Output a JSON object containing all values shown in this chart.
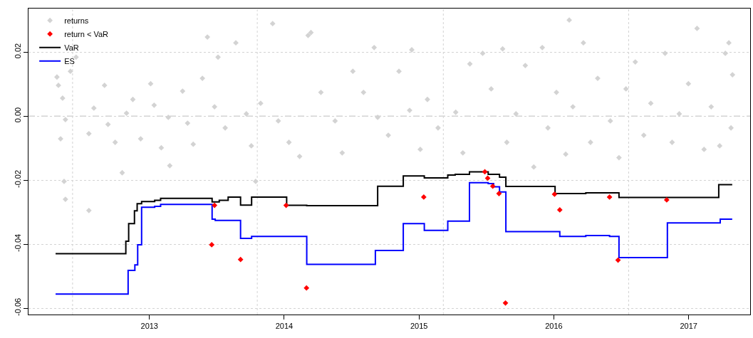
{
  "chart_data": {
    "type": "scatter",
    "xlim": [
      2012.103,
      2017.456
    ],
    "ylim": [
      -0.062,
      0.0336
    ],
    "xticks": [
      2013,
      2014,
      2015,
      2016,
      2017
    ],
    "yticks": [
      {
        "value": -0.06,
        "label": "-0.06"
      },
      {
        "value": -0.04,
        "label": "-0.04"
      },
      {
        "value": -0.02,
        "label": "-0.02"
      },
      {
        "value": 0,
        "label": "0.00"
      },
      {
        "value": 0.02,
        "label": "0.02"
      }
    ],
    "grid": "y",
    "legend": "top left",
    "ref_lines": [
      {
        "axis": "y",
        "value": 0,
        "color": "#bebebe",
        "line_style": "dashed"
      },
      {
        "axis": "x",
        "value": 2012.43,
        "color": "#d3d3d3",
        "line_style": "dotted"
      },
      {
        "axis": "x",
        "value": 2013.8,
        "color": "#d3d3d3",
        "line_style": "dotted"
      },
      {
        "axis": "x",
        "value": 2015.18,
        "color": "#d3d3d3",
        "line_style": "dotted"
      },
      {
        "axis": "x",
        "value": 2016.555,
        "color": "#d3d3d3",
        "line_style": "dotted"
      }
    ],
    "series": [
      {
        "name": "returns",
        "marker": "diamond",
        "color": "#d3d3d3",
        "x": [
          2012.314,
          2012.325,
          2012.356,
          2012.377,
          2012.341,
          2012.367,
          2012.377,
          2012.414,
          2012.456,
          2012.551,
          2012.551,
          2012.588,
          2012.667,
          2012.693,
          2012.746,
          2012.798,
          2012.83,
          2012.877,
          2012.935,
          2013.009,
          2013.035,
          2013.088,
          2013.151,
          2013.14,
          2013.246,
          2013.283,
          2013.325,
          2013.393,
          2013.43,
          2013.483,
          2013.509,
          2013.562,
          2013.641,
          2013.719,
          2013.756,
          2013.788,
          2013.825,
          2013.914,
          2013.956,
          2014.035,
          2014.114,
          2014.177,
          2014.198,
          2014.272,
          2014.377,
          2014.43,
          2014.509,
          2014.588,
          2014.667,
          2014.693,
          2014.772,
          2014.851,
          2014.93,
          2014.946,
          2015.009,
          2015.062,
          2015.141,
          2015.272,
          2015.325,
          2015.377,
          2015.472,
          2015.535,
          2015.62,
          2015.651,
          2015.719,
          2015.788,
          2015.851,
          2015.914,
          2015.956,
          2016.019,
          2016.088,
          2016.114,
          2016.141,
          2016.219,
          2016.272,
          2016.325,
          2016.419,
          2016.483,
          2016.535,
          2016.604,
          2016.667,
          2016.719,
          2016.825,
          2016.877,
          2016.93,
          2016.998,
          2017.062,
          2017.114,
          2017.167,
          2017.23,
          2017.272,
          2017.298,
          2017.314,
          2017.325
        ],
        "values": [
          0.0122,
          0.0096,
          0.0056,
          -0.0011,
          -0.0071,
          -0.0204,
          -0.026,
          0.014,
          0.0184,
          -0.0055,
          -0.0295,
          0.0025,
          0.0096,
          -0.0026,
          -0.0082,
          -0.0177,
          0.0009,
          0.0052,
          -0.0071,
          0.0101,
          0.0034,
          -0.0099,
          -0.0155,
          -0.0004,
          0.0078,
          -0.0022,
          -0.0088,
          0.0118,
          0.0247,
          0.0029,
          0.0184,
          -0.0037,
          0.0229,
          0.0007,
          -0.0093,
          -0.0204,
          0.004,
          0.0289,
          -0.0015,
          -0.0082,
          -0.0126,
          0.0252,
          0.0261,
          0.0074,
          -0.0015,
          -0.0115,
          0.014,
          0.0074,
          0.0214,
          -0.0004,
          -0.006,
          0.014,
          0.0018,
          0.0207,
          -0.0104,
          0.0052,
          -0.0037,
          0.0012,
          -0.0115,
          0.0163,
          0.0196,
          0.0085,
          0.021,
          -0.0082,
          0.0007,
          0.0158,
          -0.0159,
          0.0214,
          -0.0037,
          0.0074,
          -0.0119,
          0.03,
          0.0029,
          0.0229,
          -0.0082,
          0.0118,
          -0.0015,
          -0.013,
          0.0085,
          0.0169,
          -0.006,
          0.004,
          0.0196,
          -0.0082,
          0.0007,
          0.0101,
          0.0274,
          -0.0104,
          0.0029,
          -0.0093,
          0.0196,
          0.0229,
          -0.0037,
          0.0129
        ]
      },
      {
        "name": "return < VaR",
        "marker": "diamond",
        "color": "#ff0000",
        "x": [
          2013.483,
          2013.462,
          2013.676,
          2014.014,
          2014.165,
          2015.035,
          2015.488,
          2015.509,
          2015.547,
          2015.593,
          2015.641,
          2016.005,
          2016.044,
          2016.413,
          2016.476,
          2016.837
        ],
        "values": [
          -0.0279,
          -0.0402,
          -0.0448,
          -0.0279,
          -0.0537,
          -0.0253,
          -0.0174,
          -0.0194,
          -0.0219,
          -0.0242,
          -0.0584,
          -0.0244,
          -0.0293,
          -0.0253,
          -0.045,
          -0.0262
        ]
      },
      {
        "name": "VaR",
        "type": "step",
        "color": "#000000",
        "x": [
          2012.304,
          2012.825,
          2012.846,
          2012.889,
          2012.909,
          2012.942,
          2013.039,
          2013.083,
          2013.465,
          2013.518,
          2013.584,
          2013.676,
          2013.758,
          2014.018,
          2014.167,
          2014.693,
          2014.883,
          2015.039,
          2015.213,
          2015.268,
          2015.374,
          2015.513,
          2015.597,
          2015.644,
          2016.009,
          2016.237,
          2016.483,
          2017.223,
          2017.323
        ],
        "values": [
          -0.043,
          -0.0391,
          -0.0336,
          -0.0296,
          -0.0274,
          -0.0267,
          -0.0263,
          -0.0257,
          -0.0268,
          -0.0263,
          -0.0253,
          -0.0278,
          -0.0253,
          -0.0279,
          -0.028,
          -0.0219,
          -0.0187,
          -0.0193,
          -0.0184,
          -0.0182,
          -0.0174,
          -0.0182,
          -0.0191,
          -0.022,
          -0.0242,
          -0.024,
          -0.0254,
          -0.0214,
          -0.0214
        ]
      },
      {
        "name": "ES",
        "type": "step",
        "color": "#0000ff",
        "x": [
          2012.304,
          2012.842,
          2012.892,
          2012.913,
          2012.942,
          2013.039,
          2013.083,
          2013.465,
          2013.488,
          2013.676,
          2013.758,
          2014.167,
          2014.676,
          2014.883,
          2015.039,
          2015.213,
          2015.374,
          2015.513,
          2015.553,
          2015.597,
          2015.644,
          2016.044,
          2016.237,
          2016.413,
          2016.483,
          2016.842,
          2017.234,
          2017.323
        ],
        "values": [
          -0.0556,
          -0.0482,
          -0.0465,
          -0.0402,
          -0.0285,
          -0.0282,
          -0.0276,
          -0.0322,
          -0.0326,
          -0.0382,
          -0.0376,
          -0.0463,
          -0.042,
          -0.0336,
          -0.0357,
          -0.0328,
          -0.0208,
          -0.0211,
          -0.0221,
          -0.0237,
          -0.0361,
          -0.0376,
          -0.0373,
          -0.0376,
          -0.0442,
          -0.0334,
          -0.0322,
          -0.0322
        ]
      }
    ]
  }
}
